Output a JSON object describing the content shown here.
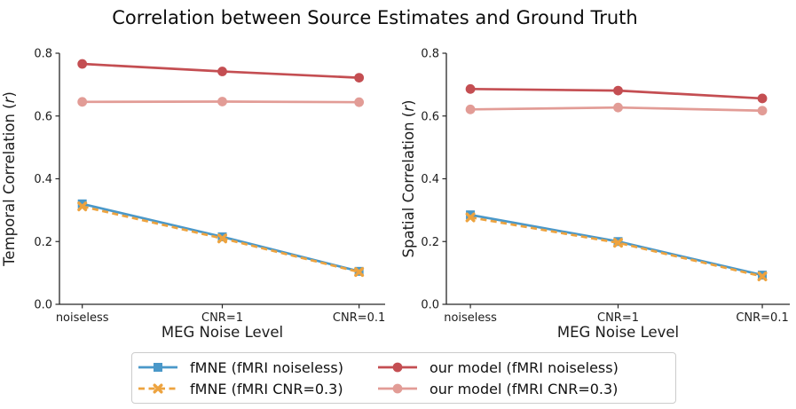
{
  "title": "Correlation between Source Estimates and Ground Truth",
  "colors": {
    "fmne_noiseless": "#4a98c9",
    "fmne_cnr03": "#eda33f",
    "our_model_noiseless": "#c44e52",
    "our_model_cnr03": "#e29c96",
    "axis": "#262626",
    "legend_border": "#cccccc"
  },
  "legend": {
    "items": [
      {
        "label": "fMNE (fMRI noiseless)",
        "color": "#4a98c9",
        "marker": "square",
        "dash": "solid"
      },
      {
        "label": "fMNE (fMRI CNR=0.3)",
        "color": "#eda33f",
        "marker": "x",
        "dash": "dashed"
      },
      {
        "label": "our model (fMRI noiseless)",
        "color": "#c44e52",
        "marker": "circle",
        "dash": "solid"
      },
      {
        "label": "our model (fMRI CNR=0.3)",
        "color": "#e29c96",
        "marker": "circle",
        "dash": "solid"
      }
    ]
  },
  "chart_data": [
    {
      "type": "line",
      "title": "",
      "xlabel": "MEG Noise Level",
      "ylabel": "Temporal Correlation (r)",
      "categories": [
        "noiseless",
        "CNR=1",
        "CNR=0.1"
      ],
      "yticks": [
        0.0,
        0.2,
        0.4,
        0.6,
        0.8
      ],
      "ylim": [
        0.0,
        0.8
      ],
      "grid": false,
      "legend_position": "bottom-outside",
      "series": [
        {
          "name": "fMNE (fMRI noiseless)",
          "color": "#4a98c9",
          "marker": "square",
          "dash": "solid",
          "values": [
            0.32,
            0.215,
            0.105
          ]
        },
        {
          "name": "fMNE (fMRI CNR=0.3)",
          "color": "#eda33f",
          "marker": "x",
          "dash": "dashed",
          "values": [
            0.312,
            0.21,
            0.103
          ]
        },
        {
          "name": "our model (fMRI noiseless)",
          "color": "#c44e52",
          "marker": "circle",
          "dash": "solid",
          "values": [
            0.766,
            0.742,
            0.722
          ]
        },
        {
          "name": "our model (fMRI CNR=0.3)",
          "color": "#e29c96",
          "marker": "circle",
          "dash": "solid",
          "values": [
            0.645,
            0.646,
            0.644
          ]
        }
      ]
    },
    {
      "type": "line",
      "title": "",
      "xlabel": "MEG Noise Level",
      "ylabel": "Spatial Correlation (r)",
      "categories": [
        "noiseless",
        "CNR=1",
        "CNR=0.1"
      ],
      "yticks": [
        0.0,
        0.2,
        0.4,
        0.6,
        0.8
      ],
      "ylim": [
        0.0,
        0.8
      ],
      "grid": false,
      "legend_position": "bottom-outside",
      "series": [
        {
          "name": "fMNE (fMRI noiseless)",
          "color": "#4a98c9",
          "marker": "square",
          "dash": "solid",
          "values": [
            0.285,
            0.2,
            0.093
          ]
        },
        {
          "name": "fMNE (fMRI CNR=0.3)",
          "color": "#eda33f",
          "marker": "x",
          "dash": "dashed",
          "values": [
            0.277,
            0.196,
            0.089
          ]
        },
        {
          "name": "our model (fMRI noiseless)",
          "color": "#c44e52",
          "marker": "circle",
          "dash": "solid",
          "values": [
            0.686,
            0.681,
            0.656
          ]
        },
        {
          "name": "our model (fMRI CNR=0.3)",
          "color": "#e29c96",
          "marker": "circle",
          "dash": "solid",
          "values": [
            0.621,
            0.627,
            0.617
          ]
        }
      ]
    }
  ]
}
